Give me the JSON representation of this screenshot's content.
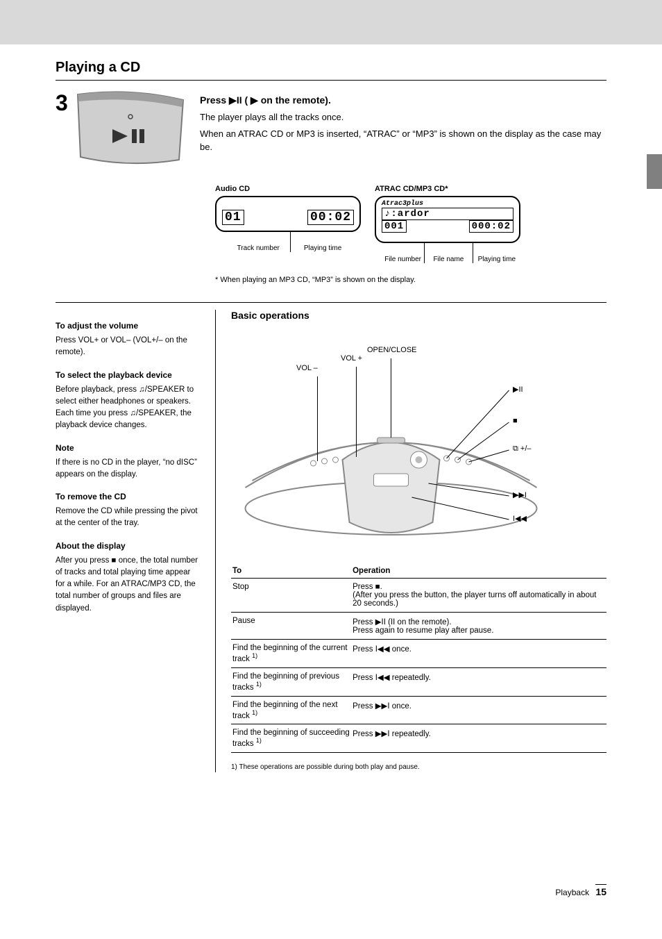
{
  "section_title": "Playing a CD",
  "step": {
    "number": "3",
    "instruction_html": "Press ▶II (▶ on the remote).",
    "sub1": "The player plays all the tracks once.",
    "sub2": "When an ATRAC CD or MP3 is inserted, “ATRAC” or “MP3” is shown on the display as the case may be."
  },
  "displays": {
    "audio_cd": {
      "title": "Audio CD",
      "track": "01",
      "time": "00:02",
      "callout1": "Track number",
      "callout2": "Playing time"
    },
    "atrac": {
      "title": "ATRAC CD/MP3 CD*",
      "logo": "Atrac3plus",
      "songline": "♪:ardor",
      "track": "001",
      "time": "000:02",
      "callout1": "File number",
      "callout2": "File name",
      "callout3": "Playing time"
    },
    "footnote": "* When playing an MP3 CD, “MP3” is shown on the display."
  },
  "left": {
    "adjust_heading": "To adjust the volume",
    "adjust_text": "Press VOL+ or VOL– (VOL+/– on the remote).",
    "headphone_heading": "To select the playback device",
    "headphone_text": "Before playback, press ⎋ /SPEAKER to select either headphones or speakers. Each time you press ⎋ /SPEAKER, the playback device changes.",
    "note_heading": "Note",
    "note_text": "If there is no CD in the player, “no dISC” appears on the display.",
    "remove_heading": "To remove the CD",
    "remove_text": "Remove the CD while pressing the pivot at the center of the tray.",
    "last_heading": "About the display",
    "last_text": "After you press ■ once, the total number of tracks and total playing time appear for a while. For an ATRAC/MP3 CD, the total number of groups and files are displayed."
  },
  "right": {
    "heading": "Basic operations",
    "diagram": {
      "labels": {
        "openclose": "OPEN/CLOSE",
        "volminus": "VOL –",
        "volplus": "VOL +",
        "playpause": "▶II",
        "stop": "■",
        "group": "⧉ +/–",
        "next": "▶▶I",
        "prev": "I◀◀"
      }
    },
    "table": {
      "head_to": "To",
      "head_op": "Operation",
      "rows": [
        {
          "to": "Stop",
          "op": "Press ■.<br>(After you press the button, the player turns off automatically in about 20 seconds.)"
        },
        {
          "to": "Pause",
          "op": "Press ▶II (II on the remote).<br>Press again to resume play after pause."
        },
        {
          "to": "Find the beginning of the current track <span class='sup'>1)</span>",
          "op": "Press I◀◀ once."
        },
        {
          "to": "Find the beginning of previous tracks <span class='sup'>1)</span>",
          "op": "Press I◀◀ repeatedly."
        },
        {
          "to": "Find the beginning of the next track <span class='sup'>1)</span>",
          "op": "Press ▶▶I once."
        },
        {
          "to": "Find the beginning of succeeding tracks <span class='sup'>1)</span>",
          "op": "Press ▶▶I repeatedly."
        }
      ]
    },
    "footnote": "1) These operations are possible during both play and pause."
  },
  "page_label": "Playback",
  "page_number": "15",
  "colors": {
    "header": "#d9d9d9",
    "sidetab": "#808080",
    "line": "#000000",
    "lcd_bg": "#ffffff"
  }
}
